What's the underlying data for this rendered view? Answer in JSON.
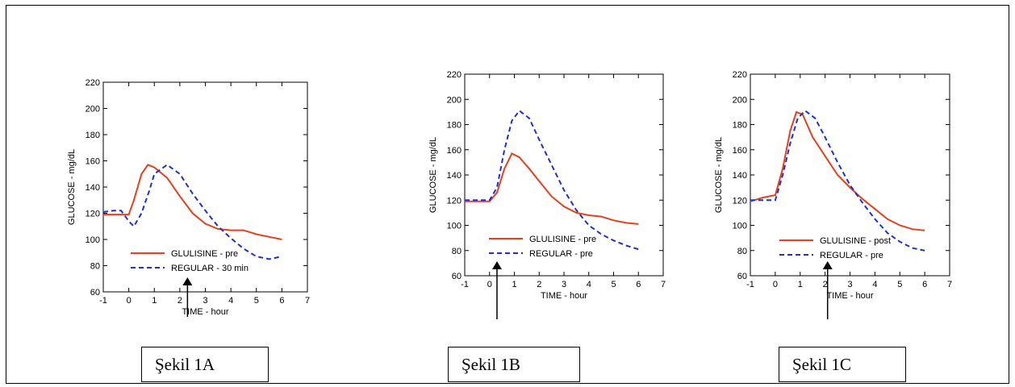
{
  "colors": {
    "glulisine": "#e8401c",
    "regular": "#1f2fd6",
    "axis": "#000000"
  },
  "captions": [
    "Şekil 1A",
    "Şekil 1B",
    "Şekil 1C"
  ],
  "chart_data": [
    {
      "type": "line",
      "xlabel": "TIME - hour",
      "ylabel": "GLUCOSE - mg/dL",
      "xlim": [
        -1,
        7
      ],
      "ylim": [
        60,
        220
      ],
      "xticks": [
        -1,
        0,
        1,
        2,
        3,
        4,
        5,
        6,
        7
      ],
      "yticks": [
        60,
        80,
        100,
        120,
        140,
        160,
        180,
        200,
        220
      ],
      "legend": "bottom",
      "arrow_at_x": 2.3,
      "series": [
        {
          "name": "GLULISINE - pre",
          "color": "#e8401c",
          "dash": "solid",
          "x": [
            -1,
            -0.5,
            0,
            0.2,
            0.5,
            0.75,
            1,
            1.5,
            2,
            2.5,
            3,
            3.5,
            4,
            4.5,
            5,
            5.5,
            6
          ],
          "y": [
            119,
            119,
            119,
            130,
            150,
            157,
            155,
            147,
            133,
            120,
            112,
            108,
            107,
            107,
            104,
            102,
            100
          ]
        },
        {
          "name": "REGULAR - 30 min",
          "color": "#1f2fd6",
          "dash": "dashed",
          "x": [
            -1,
            -0.6,
            -0.3,
            0,
            0.2,
            0.5,
            0.8,
            1,
            1.5,
            2,
            2.5,
            3,
            3.5,
            4,
            4.5,
            5,
            5.5,
            6
          ],
          "y": [
            121,
            122,
            122,
            114,
            110,
            120,
            137,
            150,
            157,
            150,
            135,
            122,
            110,
            101,
            93,
            87,
            85,
            87
          ]
        }
      ]
    },
    {
      "type": "line",
      "xlabel": "TIME - hour",
      "ylabel": "GLUCOSE - mg/dL",
      "xlim": [
        -1,
        7
      ],
      "ylim": [
        60,
        220
      ],
      "xticks": [
        -1,
        0,
        1,
        2,
        3,
        4,
        5,
        6,
        7
      ],
      "yticks": [
        60,
        80,
        100,
        120,
        140,
        160,
        180,
        200,
        220
      ],
      "legend": "bottom",
      "arrow_at_x": 0.3,
      "series": [
        {
          "name": "GLULISINE - pre",
          "color": "#e8401c",
          "dash": "solid",
          "x": [
            -1,
            -0.5,
            0,
            0.3,
            0.6,
            0.9,
            1.2,
            1.6,
            2,
            2.5,
            3,
            3.5,
            4,
            4.5,
            5,
            5.5,
            6
          ],
          "y": [
            119,
            119,
            119,
            126,
            145,
            157,
            154,
            145,
            135,
            123,
            115,
            110,
            108,
            107,
            104,
            102,
            101
          ]
        },
        {
          "name": "REGULAR - pre",
          "color": "#1f2fd6",
          "dash": "dashed",
          "x": [
            -1,
            -0.5,
            0,
            0.3,
            0.6,
            0.9,
            1.2,
            1.6,
            2,
            2.5,
            3,
            3.5,
            4,
            4.5,
            5,
            5.5,
            6
          ],
          "y": [
            120,
            120,
            120,
            130,
            160,
            183,
            191,
            185,
            168,
            148,
            128,
            112,
            100,
            93,
            88,
            84,
            81
          ]
        }
      ]
    },
    {
      "type": "line",
      "xlabel": "TIME - hour",
      "ylabel": "GLUCOSE - mg/dL",
      "xlim": [
        -1,
        7
      ],
      "ylim": [
        60,
        220
      ],
      "xticks": [
        -1,
        0,
        1,
        2,
        3,
        4,
        5,
        6,
        7
      ],
      "yticks": [
        60,
        80,
        100,
        120,
        140,
        160,
        180,
        200,
        220
      ],
      "legend": "bottom",
      "arrow_at_x": 2.1,
      "series": [
        {
          "name": "GLULISINE - post",
          "color": "#e8401c",
          "dash": "solid",
          "x": [
            -1,
            -0.5,
            0,
            0.3,
            0.6,
            0.85,
            1.1,
            1.5,
            2,
            2.5,
            3,
            3.5,
            4,
            4.5,
            5,
            5.5,
            6
          ],
          "y": [
            119,
            122,
            124,
            145,
            175,
            190,
            188,
            170,
            155,
            140,
            130,
            121,
            113,
            105,
            100,
            97,
            96
          ]
        },
        {
          "name": "REGULAR - pre",
          "color": "#1f2fd6",
          "dash": "dashed",
          "x": [
            -1,
            -0.5,
            0,
            0.3,
            0.6,
            0.9,
            1.2,
            1.6,
            2,
            2.5,
            3,
            3.5,
            4,
            4.5,
            5,
            5.5,
            6
          ],
          "y": [
            120,
            120,
            120,
            140,
            165,
            185,
            191,
            185,
            170,
            150,
            132,
            118,
            105,
            94,
            87,
            82,
            80
          ]
        }
      ]
    }
  ]
}
